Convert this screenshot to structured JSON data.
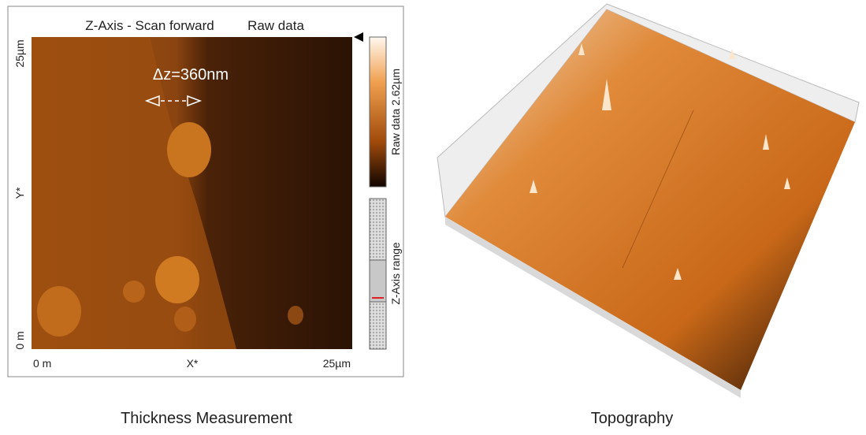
{
  "left_panel": {
    "title": "Z-Axis - Scan forward",
    "subtitle": "Raw data",
    "y_axis": {
      "top": "25µm",
      "label": "Y*",
      "bottom": "0 m"
    },
    "x_axis": {
      "left": "0 m",
      "label": "X*",
      "right": "25µm"
    },
    "annotation": "Δz=360nm",
    "colorbar_label": "Raw data 2.62µm",
    "range_label": "Z-Axis range",
    "caption": "Thickness Measurement"
  },
  "right_panel": {
    "caption": "Topography"
  }
}
